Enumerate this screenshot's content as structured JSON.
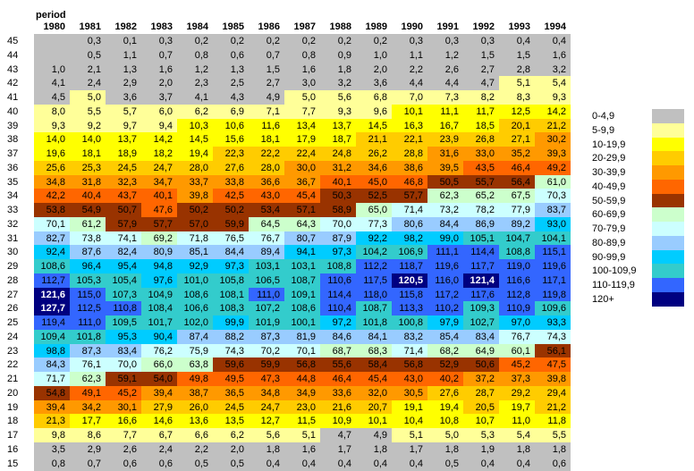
{
  "header": {
    "period_label": "period",
    "years": [
      "1980",
      "1981",
      "1982",
      "1983",
      "1984",
      "1985",
      "1986",
      "1987",
      "1988",
      "1989",
      "1990",
      "1991",
      "1992",
      "1993",
      "1994"
    ]
  },
  "rows": [
    {
      "age": 45,
      "values": [
        null,
        "0,3",
        "0,1",
        "0,3",
        "0,2",
        "0,2",
        "0,2",
        "0,2",
        "0,2",
        "0,2",
        "0,3",
        "0,3",
        "0,3",
        "0,4",
        "0,4"
      ]
    },
    {
      "age": 44,
      "values": [
        null,
        "0,5",
        "1,1",
        "0,7",
        "0,8",
        "0,6",
        "0,7",
        "0,8",
        "0,9",
        "1,0",
        "1,1",
        "1,2",
        "1,5",
        "1,5",
        "1,6"
      ]
    },
    {
      "age": 43,
      "values": [
        "1,0",
        "2,1",
        "1,3",
        "1,6",
        "1,2",
        "1,3",
        "1,5",
        "1,6",
        "1,8",
        "2,0",
        "2,2",
        "2,6",
        "2,7",
        "2,8",
        "3,2"
      ]
    },
    {
      "age": 42,
      "values": [
        "4,1",
        "2,4",
        "2,9",
        "2,0",
        "2,3",
        "2,5",
        "2,7",
        "3,0",
        "3,2",
        "3,6",
        "4,4",
        "4,4",
        "4,7",
        "5,1",
        "5,4"
      ]
    },
    {
      "age": 41,
      "values": [
        "4,5",
        "5,0",
        "3,6",
        "3,7",
        "4,1",
        "4,3",
        "4,9",
        "5,0",
        "5,6",
        "6,8",
        "7,0",
        "7,3",
        "8,2",
        "8,3",
        "9,3"
      ]
    },
    {
      "age": 40,
      "values": [
        "8,0",
        "5,5",
        "5,7",
        "6,0",
        "6,2",
        "6,9",
        "7,1",
        "7,7",
        "9,3",
        "9,6",
        "10,1",
        "11,1",
        "11,7",
        "12,5",
        "14,2"
      ]
    },
    {
      "age": 39,
      "values": [
        "9,3",
        "9,2",
        "9,7",
        "9,4",
        "10,3",
        "10,6",
        "11,6",
        "13,4",
        "13,7",
        "14,5",
        "16,3",
        "16,7",
        "18,5",
        "20,1",
        "21,2"
      ]
    },
    {
      "age": 38,
      "values": [
        "14,0",
        "14,0",
        "13,7",
        "14,2",
        "14,5",
        "15,6",
        "18,1",
        "17,9",
        "18,7",
        "21,1",
        "22,1",
        "23,9",
        "26,8",
        "27,1",
        "30,2"
      ]
    },
    {
      "age": 37,
      "values": [
        "19,6",
        "18,1",
        "18,9",
        "18,2",
        "19,4",
        "22,3",
        "22,2",
        "22,4",
        "24,8",
        "26,2",
        "28,8",
        "31,6",
        "33,0",
        "35,2",
        "39,3"
      ]
    },
    {
      "age": 36,
      "values": [
        "25,6",
        "25,3",
        "24,5",
        "24,7",
        "28,0",
        "27,6",
        "28,0",
        "30,0",
        "31,2",
        "34,6",
        "38,6",
        "39,5",
        "43,5",
        "46,4",
        "49,2"
      ]
    },
    {
      "age": 35,
      "values": [
        "34,8",
        "31,8",
        "32,3",
        "34,7",
        "33,7",
        "33,8",
        "36,6",
        "36,7",
        "40,1",
        "45,0",
        "46,8",
        "50,5",
        "55,7",
        "56,4",
        "61,0"
      ]
    },
    {
      "age": 34,
      "values": [
        "42,2",
        "40,4",
        "43,7",
        "40,1",
        "39,8",
        "42,5",
        "43,0",
        "45,4",
        "50,3",
        "52,5",
        "57,7",
        "62,3",
        "65,2",
        "67,5",
        "70,3"
      ]
    },
    {
      "age": 33,
      "values": [
        "53,8",
        "54,9",
        "50,7",
        "47,6",
        "50,2",
        "50,2",
        "53,4",
        "57,1",
        "58,9",
        "65,0",
        "71,4",
        "73,2",
        "78,2",
        "77,9",
        "83,7"
      ]
    },
    {
      "age": 32,
      "values": [
        "70,1",
        "61,2",
        "57,9",
        "57,7",
        "57,0",
        "59,9",
        "64,5",
        "64,3",
        "70,0",
        "77,3",
        "80,6",
        "84,4",
        "86,9",
        "89,2",
        "93,0"
      ]
    },
    {
      "age": 31,
      "values": [
        "82,7",
        "73,8",
        "74,1",
        "69,2",
        "71,8",
        "76,5",
        "76,7",
        "80,7",
        "87,9",
        "92,2",
        "98,2",
        "99,0",
        "105,1",
        "104,7",
        "104,1"
      ]
    },
    {
      "age": 30,
      "values": [
        "92,4",
        "87,6",
        "82,4",
        "80,9",
        "85,1",
        "84,4",
        "89,4",
        "94,1",
        "97,3",
        "104,2",
        "106,9",
        "111,1",
        "114,4",
        "108,8",
        "115,1"
      ]
    },
    {
      "age": 29,
      "values": [
        "108,6",
        "96,4",
        "95,4",
        "94,8",
        "92,9",
        "97,3",
        "103,1",
        "103,1",
        "108,8",
        "112,2",
        "118,7",
        "119,6",
        "117,7",
        "119,0",
        "119,6"
      ]
    },
    {
      "age": 28,
      "values": [
        "112,7",
        "105,3",
        "105,4",
        "97,6",
        "101,0",
        "105,8",
        "106,5",
        "108,7",
        "110,6",
        "117,5",
        "120,5",
        "116,0",
        "121,4",
        "116,6",
        "117,1"
      ]
    },
    {
      "age": 27,
      "values": [
        "121,6",
        "115,0",
        "107,3",
        "104,9",
        "108,6",
        "108,1",
        "111,0",
        "109,1",
        "114,4",
        "118,0",
        "115,8",
        "117,2",
        "117,6",
        "112,8",
        "119,8"
      ]
    },
    {
      "age": 26,
      "values": [
        "127,7",
        "112,5",
        "110,8",
        "108,4",
        "106,6",
        "108,3",
        "107,2",
        "108,6",
        "110,4",
        "108,7",
        "113,3",
        "110,2",
        "109,3",
        "110,9",
        "109,6"
      ]
    },
    {
      "age": 25,
      "values": [
        "119,4",
        "111,0",
        "109,5",
        "101,7",
        "102,0",
        "99,9",
        "101,9",
        "100,1",
        "97,2",
        "101,8",
        "100,8",
        "97,9",
        "102,7",
        "97,0",
        "93,3"
      ]
    },
    {
      "age": 24,
      "values": [
        "109,4",
        "101,8",
        "95,3",
        "90,4",
        "87,4",
        "88,2",
        "87,3",
        "81,9",
        "84,6",
        "84,1",
        "83,2",
        "85,4",
        "83,4",
        "76,7",
        "74,3"
      ]
    },
    {
      "age": 23,
      "values": [
        "98,8",
        "87,3",
        "83,4",
        "76,2",
        "75,9",
        "74,3",
        "70,2",
        "70,1",
        "68,7",
        "68,3",
        "71,4",
        "68,2",
        "64,9",
        "60,1",
        "56,1"
      ]
    },
    {
      "age": 22,
      "values": [
        "84,3",
        "76,1",
        "70,0",
        "66,0",
        "63,8",
        "59,6",
        "59,9",
        "56,8",
        "55,6",
        "58,4",
        "56,8",
        "52,9",
        "50,6",
        "45,2",
        "47,5"
      ]
    },
    {
      "age": 21,
      "values": [
        "71,7",
        "62,3",
        "59,1",
        "54,0",
        "49,8",
        "49,5",
        "47,3",
        "44,8",
        "46,4",
        "45,4",
        "43,0",
        "40,2",
        "37,2",
        "37,3",
        "39,8"
      ]
    },
    {
      "age": 20,
      "values": [
        "54,8",
        "49,1",
        "45,2",
        "39,4",
        "38,7",
        "36,5",
        "34,8",
        "34,9",
        "33,6",
        "32,0",
        "30,5",
        "27,6",
        "28,7",
        "29,2",
        "29,4"
      ]
    },
    {
      "age": 19,
      "values": [
        "39,4",
        "34,2",
        "30,1",
        "27,9",
        "26,0",
        "24,5",
        "24,7",
        "23,0",
        "21,6",
        "20,7",
        "19,1",
        "19,4",
        "20,5",
        "19,7",
        "21,2"
      ]
    },
    {
      "age": 18,
      "values": [
        "21,3",
        "17,7",
        "16,6",
        "14,6",
        "13,6",
        "13,5",
        "12,7",
        "11,5",
        "10,9",
        "10,1",
        "10,4",
        "10,8",
        "10,7",
        "11,0",
        "11,8"
      ]
    },
    {
      "age": 17,
      "values": [
        "9,8",
        "8,6",
        "7,7",
        "6,7",
        "6,6",
        "6,2",
        "5,6",
        "5,1",
        "4,7",
        "4,9",
        "5,1",
        "5,0",
        "5,3",
        "5,4",
        "5,5"
      ]
    },
    {
      "age": 16,
      "values": [
        "3,5",
        "2,9",
        "2,6",
        "2,4",
        "2,2",
        "2,0",
        "1,8",
        "1,6",
        "1,7",
        "1,8",
        "1,7",
        "1,8",
        "1,9",
        "1,8",
        "1,8"
      ]
    },
    {
      "age": 15,
      "values": [
        "0,8",
        "0,7",
        "0,6",
        "0,6",
        "0,5",
        "0,5",
        "0,4",
        "0,4",
        "0,4",
        "0,4",
        "0,4",
        "0,5",
        "0,4",
        "0,4",
        "0,6"
      ]
    }
  ],
  "legend": [
    {
      "label": "0-4,9",
      "color": "#c0c0c0"
    },
    {
      "label": "5-9,9",
      "color": "#ffff99"
    },
    {
      "label": "10-19,9",
      "color": "#ffff00"
    },
    {
      "label": "20-29,9",
      "color": "#ffcc00"
    },
    {
      "label": "30-39,9",
      "color": "#ff9900"
    },
    {
      "label": "40-49,9",
      "color": "#ff6600"
    },
    {
      "label": "50-59,9",
      "color": "#993300"
    },
    {
      "label": "60-69,9",
      "color": "#ccffcc"
    },
    {
      "label": "70-79,9",
      "color": "#ccffff"
    },
    {
      "label": "80-89,9",
      "color": "#99ccff"
    },
    {
      "label": "90-99,9",
      "color": "#00ccff"
    },
    {
      "label": "100-109,9",
      "color": "#33cccc"
    },
    {
      "label": "110-119,9",
      "color": "#3366ff"
    },
    {
      "label": "120+",
      "color": "#000080"
    }
  ]
}
